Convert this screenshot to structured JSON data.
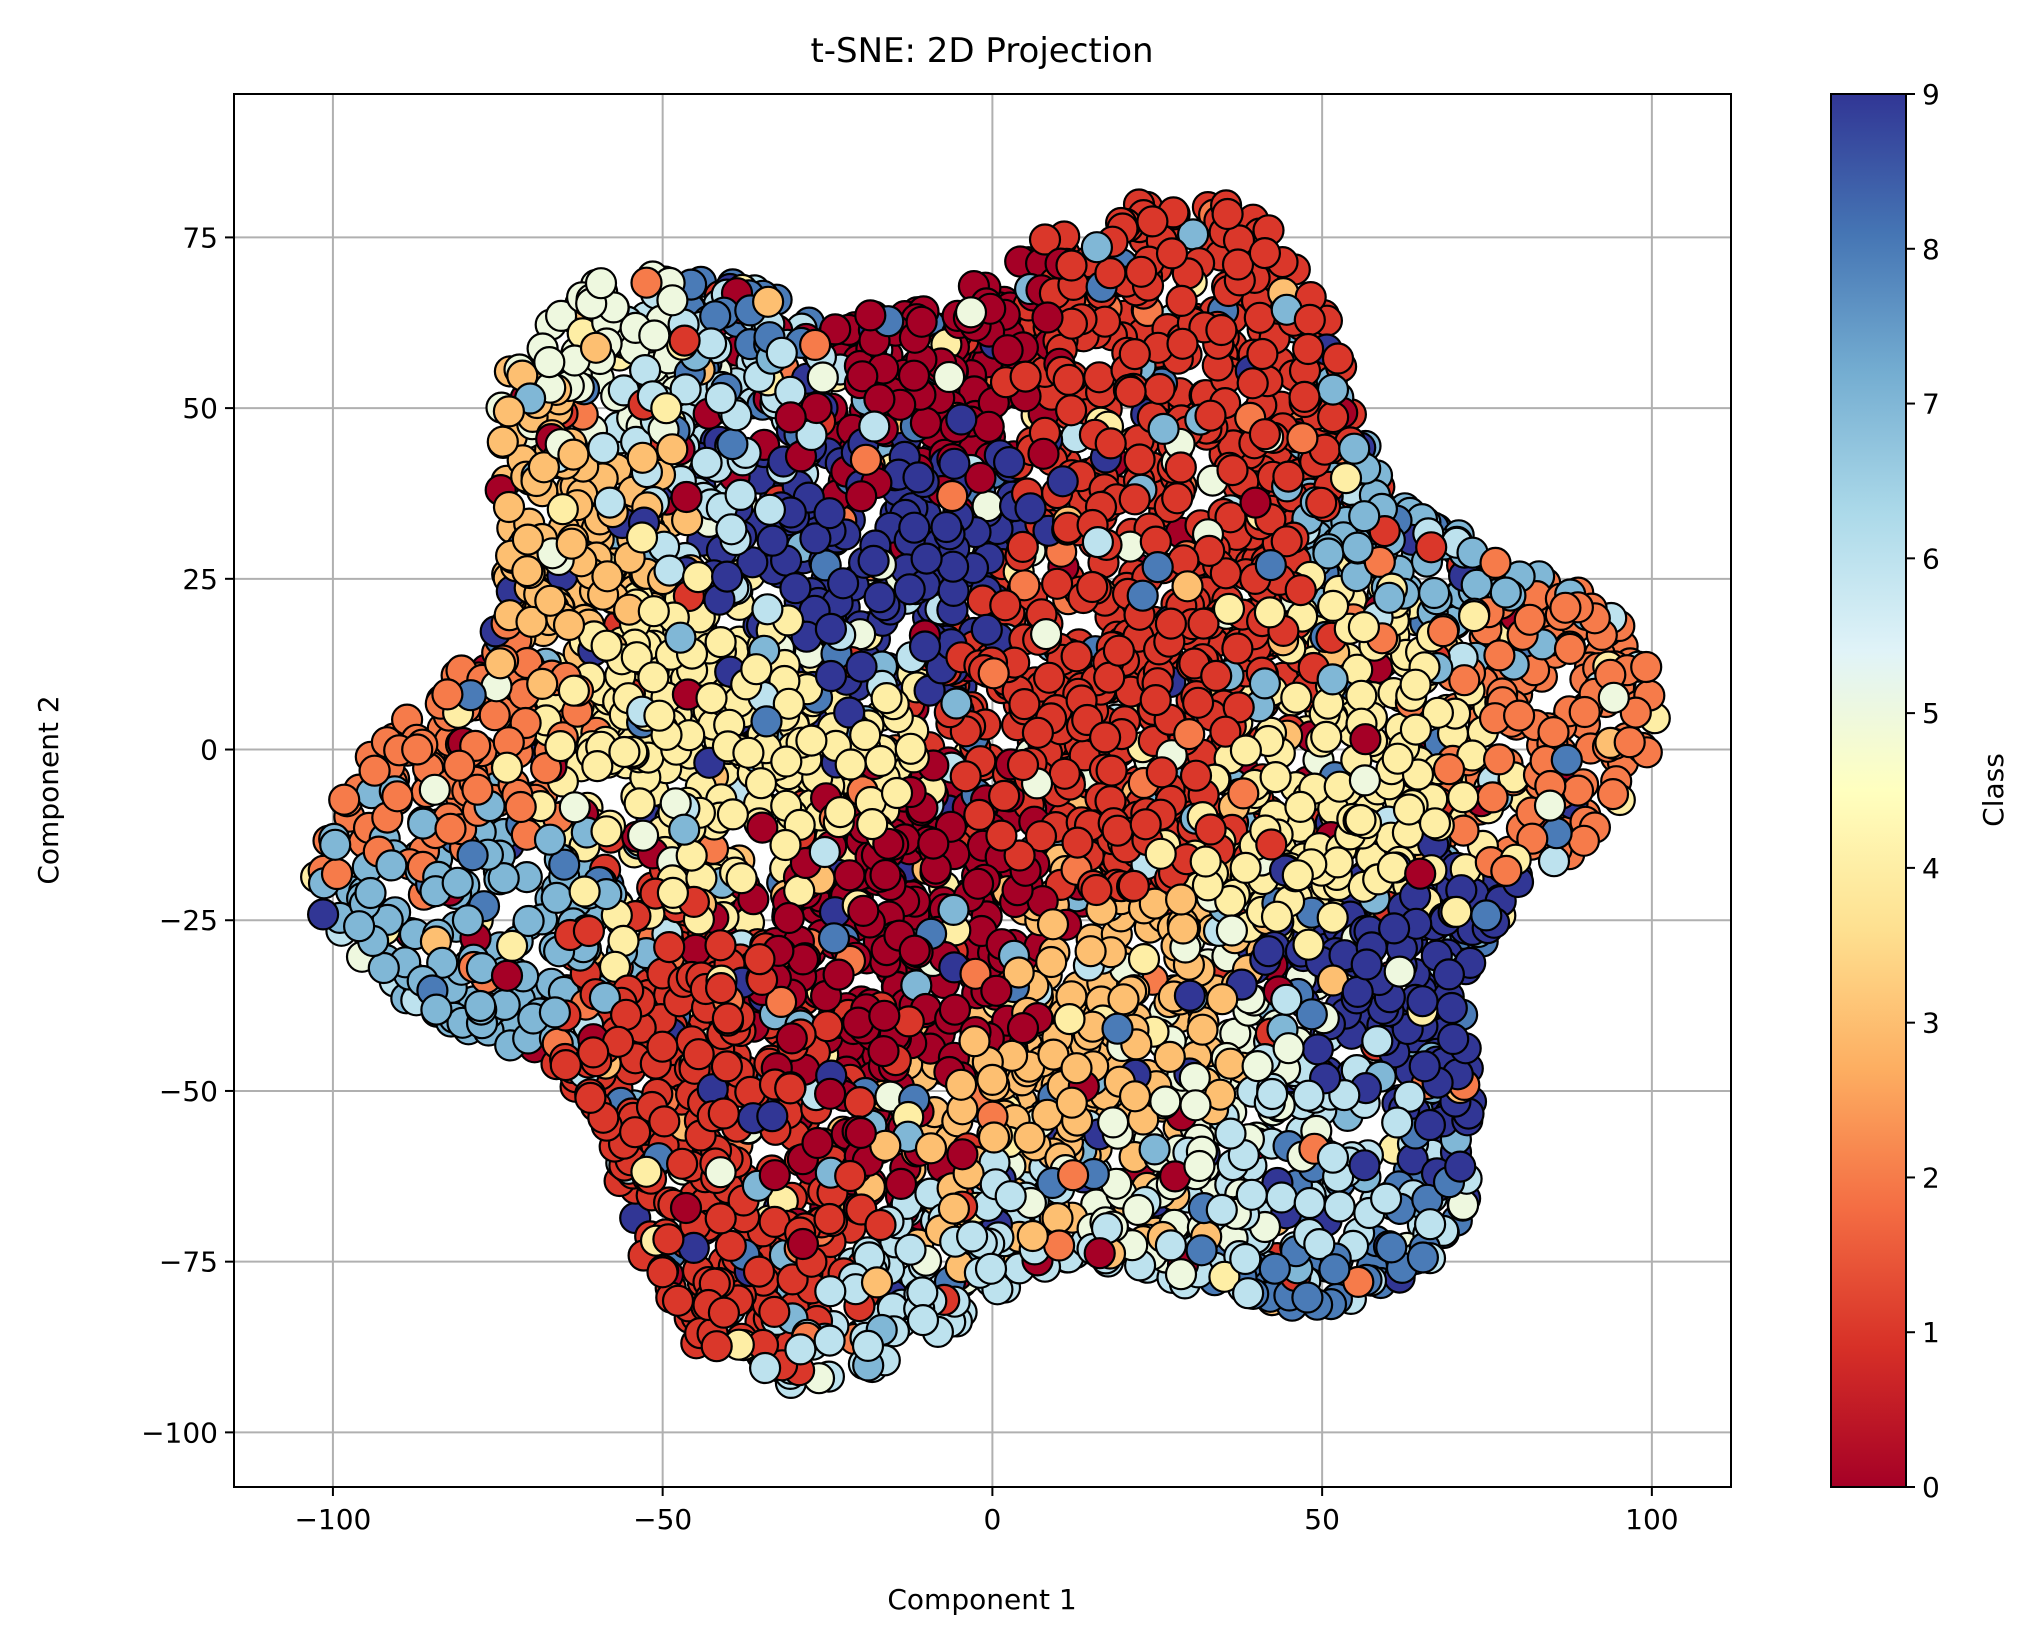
{
  "chart_data": {
    "type": "scatter",
    "title": "t-SNE: 2D Projection",
    "xlabel": "Component 1",
    "ylabel": "Component 2",
    "xlim": [
      -115,
      112
    ],
    "ylim": [
      -108,
      96
    ],
    "x_ticks": [
      -100,
      -50,
      0,
      50,
      100
    ],
    "y_ticks": [
      -100,
      -75,
      -50,
      -25,
      0,
      25,
      50,
      75
    ],
    "x_tick_labels": [
      "−100",
      "−50",
      "0",
      "50",
      "100"
    ],
    "y_tick_labels": [
      "−100",
      "−75",
      "−50",
      "−25",
      "0",
      "25",
      "50",
      "75"
    ],
    "grid": true,
    "marker": {
      "edge_color": "#000000"
    },
    "colorbar": {
      "label": "Class",
      "range": [
        0,
        9
      ],
      "ticks": [
        0,
        1,
        2,
        3,
        4,
        5,
        6,
        7,
        8,
        9
      ],
      "tick_labels": [
        "0",
        "1",
        "2",
        "3",
        "4",
        "5",
        "6",
        "7",
        "8",
        "9"
      ],
      "colormap": [
        "#a50026",
        "#d73027",
        "#f46d43",
        "#fdae61",
        "#fee090",
        "#ffffbf",
        "#e0f3f8",
        "#abd9e9",
        "#74add1",
        "#4575b4",
        "#313695"
      ]
    },
    "class_regions": [
      {
        "class": 2,
        "x": -85,
        "y": 5
      },
      {
        "class": 2,
        "x": 90,
        "y": 5
      },
      {
        "class": 3,
        "x": -70,
        "y": 38
      },
      {
        "class": 5,
        "x": -60,
        "y": 62
      },
      {
        "class": 7,
        "x": -80,
        "y": -30
      },
      {
        "class": 7,
        "x": 75,
        "y": 38
      },
      {
        "class": 4,
        "x": 58,
        "y": 0
      },
      {
        "class": 4,
        "x": -45,
        "y": 0
      },
      {
        "class": 8,
        "x": -35,
        "y": 72
      },
      {
        "class": 9,
        "x": -25,
        "y": 35
      },
      {
        "class": 9,
        "x": 70,
        "y": -40
      },
      {
        "class": 0,
        "x": -18,
        "y": -35
      },
      {
        "class": 0,
        "x": -20,
        "y": 58
      },
      {
        "class": 1,
        "x": 35,
        "y": 55
      },
      {
        "class": 1,
        "x": 25,
        "y": 10
      },
      {
        "class": 1,
        "x": -45,
        "y": -45
      },
      {
        "class": 6,
        "x": 45,
        "y": -65
      },
      {
        "class": 6,
        "x": 15,
        "y": -85
      },
      {
        "class": 5,
        "x": 30,
        "y": -60
      },
      {
        "class": 3,
        "x": 15,
        "y": -50
      },
      {
        "class": 8,
        "x": 50,
        "y": -80
      },
      {
        "class": 6,
        "x": -40,
        "y": 50
      }
    ]
  }
}
